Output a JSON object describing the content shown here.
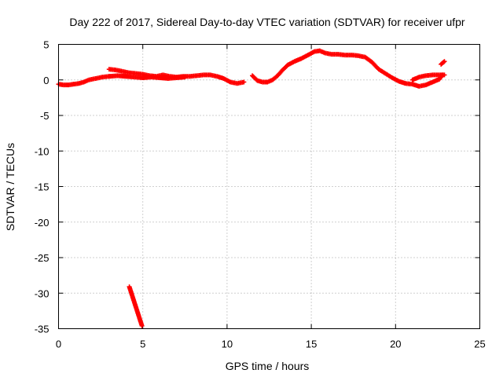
{
  "chart_data": {
    "type": "scatter",
    "title": "Day 222 of 2017, Sidereal Day-to-day VTEC variation (SDTVAR) for receiver ufpr",
    "xlabel": "GPS time / hours",
    "ylabel": "SDTVAR / TECUs",
    "xlim": [
      0,
      25
    ],
    "ylim": [
      -35,
      5
    ],
    "x_ticks": [
      "0",
      "5",
      "10",
      "15",
      "20",
      "25"
    ],
    "y_ticks": [
      "5",
      "0",
      "-5",
      "-10",
      "-15",
      "-20",
      "-25",
      "-30",
      "-35"
    ],
    "grid": true,
    "marker": "+",
    "series": [
      {
        "name": "ufpr",
        "color": "#ff0000",
        "segments": [
          {
            "x": [
              0.0,
              0.3,
              0.6,
              0.9,
              1.2,
              1.5,
              1.8,
              2.2,
              2.6,
              3.0
            ],
            "y": [
              -0.6,
              -0.7,
              -0.7,
              -0.6,
              -0.5,
              -0.3,
              0.0,
              0.2,
              0.4,
              0.5
            ]
          },
          {
            "x": [
              3.0,
              3.4,
              3.8,
              4.2,
              4.6,
              5.0,
              5.4,
              5.8,
              6.2,
              6.6,
              7.0,
              7.4,
              7.8,
              8.2,
              8.6,
              9.0,
              9.4,
              9.8,
              10.2,
              10.6,
              11.0
            ],
            "y": [
              1.5,
              1.4,
              1.2,
              1.0,
              0.9,
              0.8,
              0.6,
              0.5,
              0.7,
              0.5,
              0.4,
              0.5,
              0.5,
              0.6,
              0.7,
              0.7,
              0.5,
              0.2,
              -0.3,
              -0.5,
              -0.3
            ]
          },
          {
            "x": [
              3.0,
              3.5,
              4.0,
              4.5,
              5.0,
              5.5,
              6.0,
              6.5,
              7.0,
              7.5
            ],
            "y": [
              0.5,
              0.6,
              0.5,
              0.4,
              0.3,
              0.4,
              0.3,
              0.2,
              0.3,
              0.4
            ]
          },
          {
            "x": [
              11.5,
              11.8,
              12.1,
              12.4,
              12.7,
              13.0,
              13.3,
              13.6,
              14.0,
              14.4,
              14.8,
              15.2,
              15.5,
              15.8,
              16.2,
              16.6,
              17.0,
              17.4,
              17.8,
              18.2,
              18.6,
              19.0,
              19.4,
              19.8,
              20.2,
              20.6,
              21.0,
              21.4,
              21.8,
              22.2,
              22.6,
              22.8
            ],
            "y": [
              0.6,
              -0.1,
              -0.3,
              -0.3,
              0.0,
              0.6,
              1.4,
              2.1,
              2.6,
              3.0,
              3.5,
              4.0,
              4.1,
              3.8,
              3.6,
              3.6,
              3.5,
              3.5,
              3.4,
              3.2,
              2.5,
              1.5,
              0.9,
              0.3,
              -0.2,
              -0.5,
              -0.6,
              -0.9,
              -0.7,
              -0.3,
              0.1,
              0.7
            ]
          },
          {
            "x": [
              21.0,
              21.4,
              21.8,
              22.2,
              22.6,
              22.9
            ],
            "y": [
              0.0,
              0.4,
              0.6,
              0.7,
              0.7,
              0.7
            ]
          },
          {
            "x": [
              22.7,
              22.9
            ],
            "y": [
              2.2,
              2.6
            ]
          },
          {
            "x": [
              4.2,
              4.35,
              4.5,
              4.65,
              4.8,
              4.95
            ],
            "y": [
              -29.1,
              -30.2,
              -31.3,
              -32.4,
              -33.5,
              -34.6
            ]
          }
        ]
      }
    ]
  }
}
